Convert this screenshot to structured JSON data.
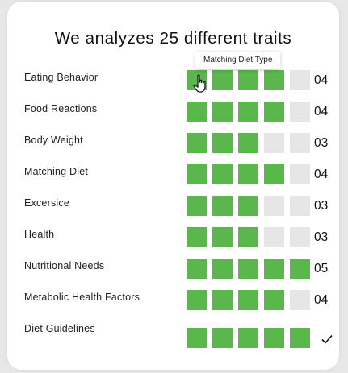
{
  "title": "We analyzes 25 different traits",
  "tooltip": "Matching Diet Type",
  "colors": {
    "filled": "#5ab74c",
    "empty": "#e6e6e6"
  },
  "traits": [
    {
      "label": "Eating Behavior",
      "score": "04",
      "level": 4
    },
    {
      "label": "Food Reactions",
      "score": "04",
      "level": 4
    },
    {
      "label": "Body Weight",
      "score": "03",
      "level": 3
    },
    {
      "label": "Matching Diet",
      "score": "04",
      "level": 4
    },
    {
      "label": "Excersice",
      "score": "03",
      "level": 3
    },
    {
      "label": "Health",
      "score": "03",
      "level": 3
    },
    {
      "label": "Nutritional Needs",
      "score": "05",
      "level": 5
    },
    {
      "label": "Metabolic Health Factors",
      "score": "04",
      "level": 4
    },
    {
      "label": "Diet Guidelines",
      "score": "",
      "level": 5,
      "status_icon": "checkmark-icon"
    }
  ],
  "max_level": 5
}
